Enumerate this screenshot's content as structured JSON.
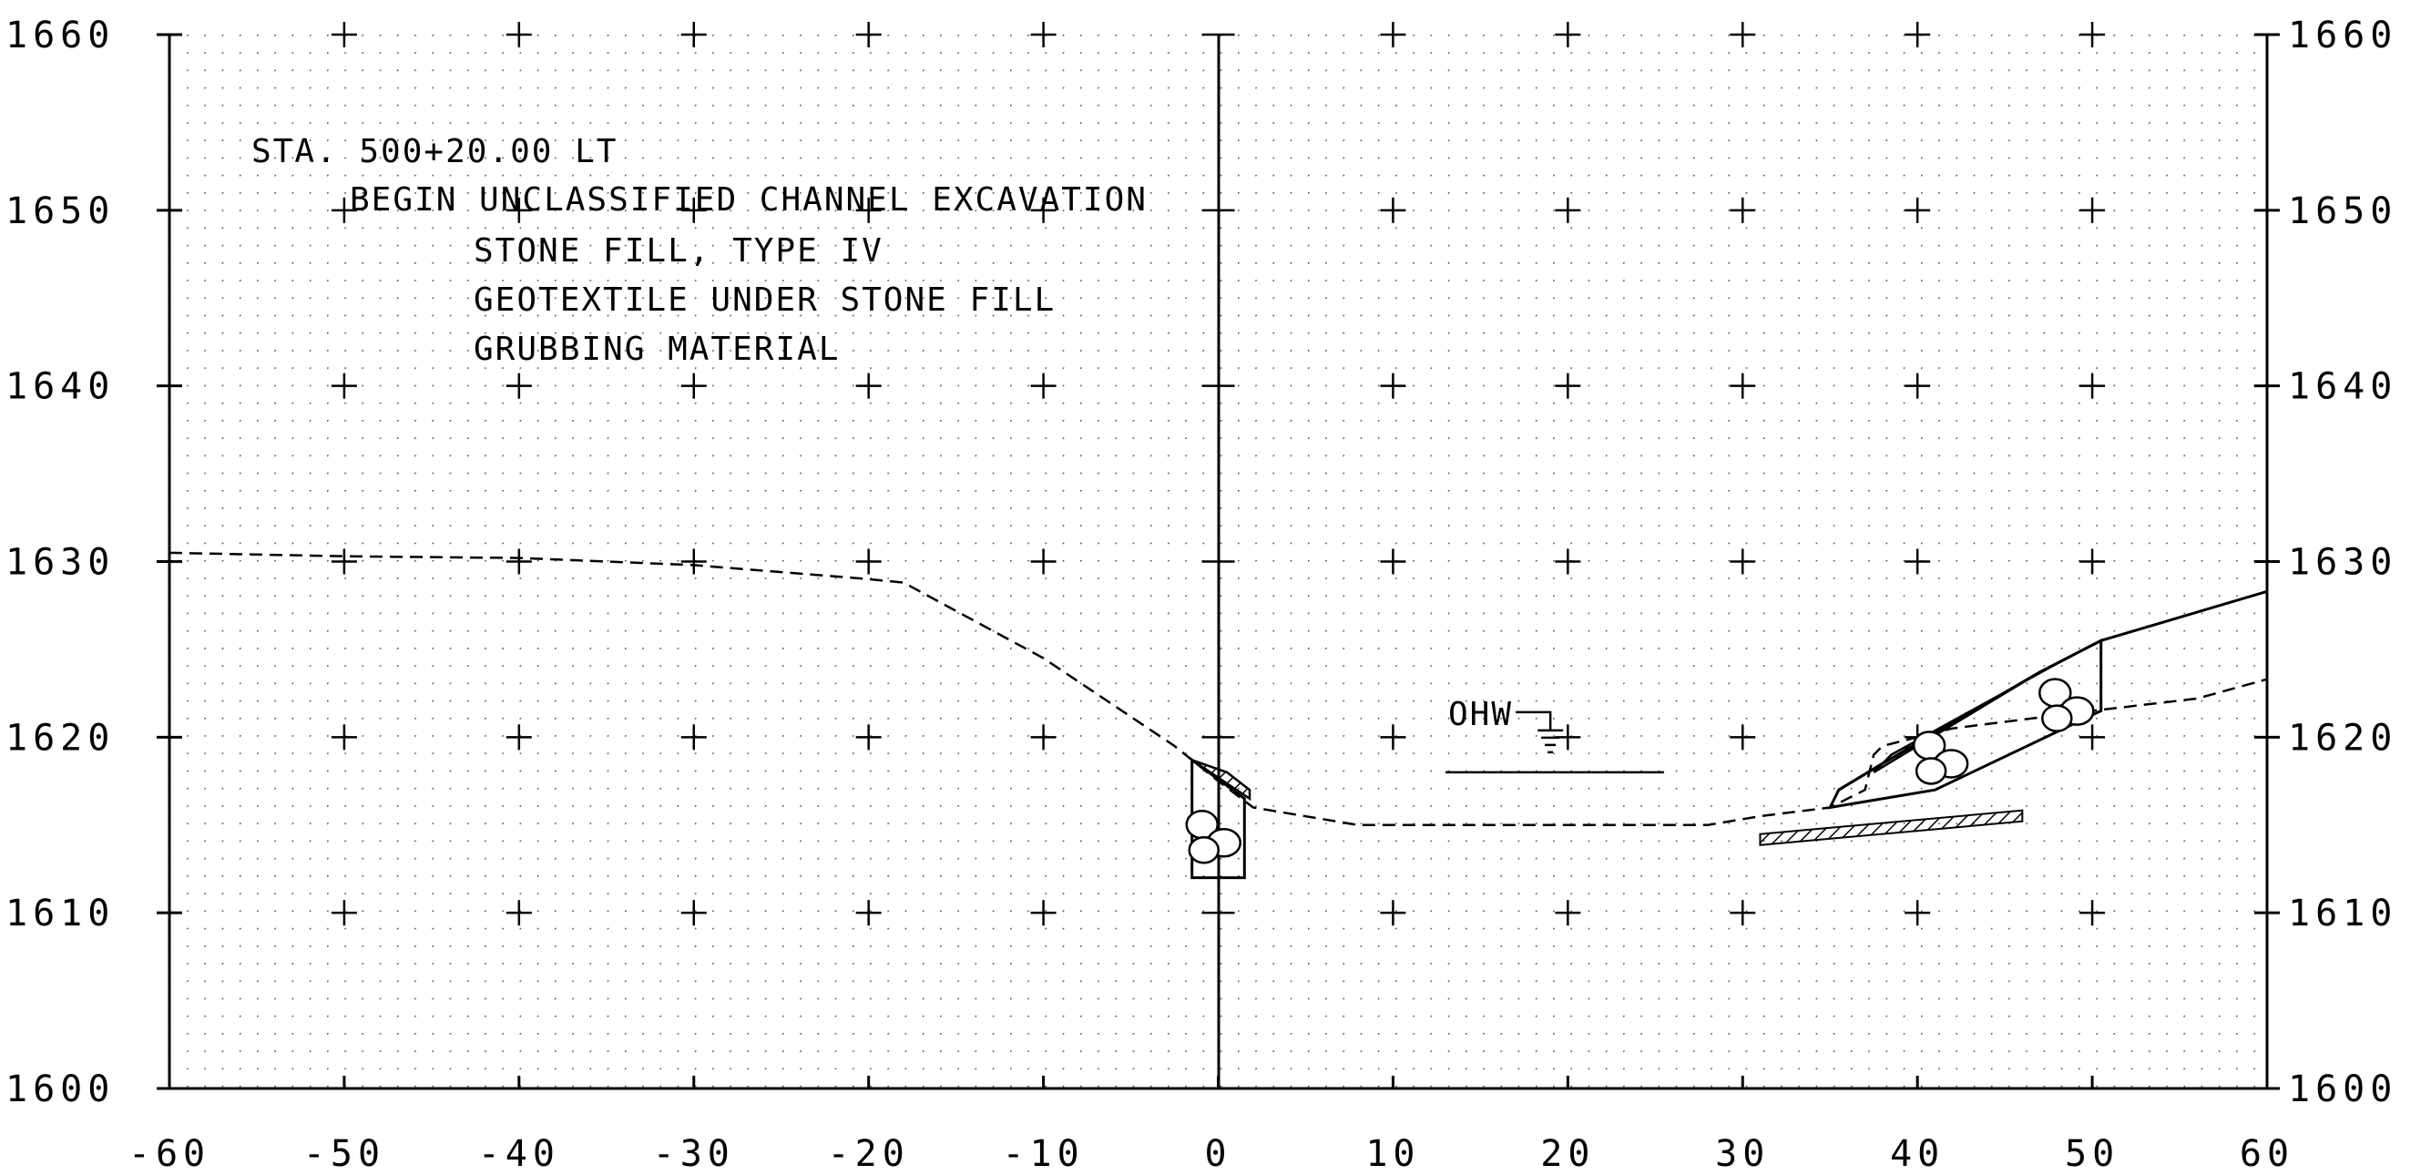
{
  "title_block": {
    "station": "STA. 500+20.00 LT",
    "items": [
      "BEGIN UNCLASSIFIED CHANNEL EXCAVATION",
      "STONE FILL, TYPE IV",
      "GEOTEXTILE UNDER STONE FILL",
      "GRUBBING MATERIAL"
    ]
  },
  "axes": {
    "x_ticks": [
      "-60",
      "-50",
      "-40",
      "-30",
      "-20",
      "-10",
      "0",
      "10",
      "20",
      "30",
      "40",
      "50",
      "60"
    ],
    "y_ticks": [
      "1660",
      "1650",
      "1640",
      "1630",
      "1620",
      "1610",
      "1600"
    ],
    "x_range": [
      -60,
      60
    ],
    "y_range": [
      1600,
      1660
    ],
    "grid": "dotted"
  },
  "water_marker": {
    "label": "OHW",
    "offset": 19,
    "elevation": 1618
  },
  "existing_ground": [
    [
      -60,
      1630.5
    ],
    [
      -50,
      1630.3
    ],
    [
      -40,
      1630.2
    ],
    [
      -30,
      1629.8
    ],
    [
      -20,
      1629.0
    ],
    [
      -18,
      1628.8
    ],
    [
      -10,
      1624.5
    ],
    [
      -2.5,
      1619.5
    ],
    [
      0,
      1617.5
    ],
    [
      2,
      1616
    ],
    [
      8,
      1615
    ],
    [
      20,
      1615
    ],
    [
      28,
      1615
    ],
    [
      31,
      1615.5
    ],
    [
      35,
      1616
    ],
    [
      37,
      1617
    ],
    [
      37.5,
      1619
    ],
    [
      38,
      1619.5
    ],
    [
      42,
      1620.5
    ],
    [
      50,
      1621.5
    ],
    [
      56,
      1622.2
    ],
    [
      60,
      1623.3
    ]
  ],
  "proposed_section": {
    "left_box": [
      [
        -1.5,
        1612
      ],
      [
        1.5,
        1612
      ],
      [
        1.5,
        1616.5
      ],
      [
        -1.5,
        1618.7
      ]
    ],
    "left_hatch": [
      [
        -1.5,
        1618.7
      ],
      [
        0.5,
        1618
      ],
      [
        1.8,
        1617
      ],
      [
        1.8,
        1616.5
      ],
      [
        -1.5,
        1618.7
      ]
    ],
    "right_outline": [
      [
        35,
        1616
      ],
      [
        35.5,
        1617
      ],
      [
        38,
        1618.5
      ],
      [
        47,
        1623.7
      ],
      [
        50.5,
        1625.5
      ],
      [
        50.5,
        1621.5
      ],
      [
        41,
        1617
      ],
      [
        35,
        1616
      ]
    ],
    "right_top": [
      [
        35.5,
        1617
      ],
      [
        38,
        1618.5
      ],
      [
        47,
        1623.7
      ],
      [
        50.5,
        1625.5
      ],
      [
        60,
        1628.3
      ]
    ],
    "right_hatch_band": [
      [
        37.5,
        1618
      ],
      [
        47,
        1623.7
      ],
      [
        48,
        1624.2
      ],
      [
        38.5,
        1619
      ],
      [
        37.5,
        1618
      ]
    ]
  },
  "grubbing": {
    "from": 31,
    "to": 46,
    "elevation": 1615
  },
  "colors": {
    "ink": "#000000",
    "grid_dot": "#555555",
    "background": "#ffffff"
  }
}
